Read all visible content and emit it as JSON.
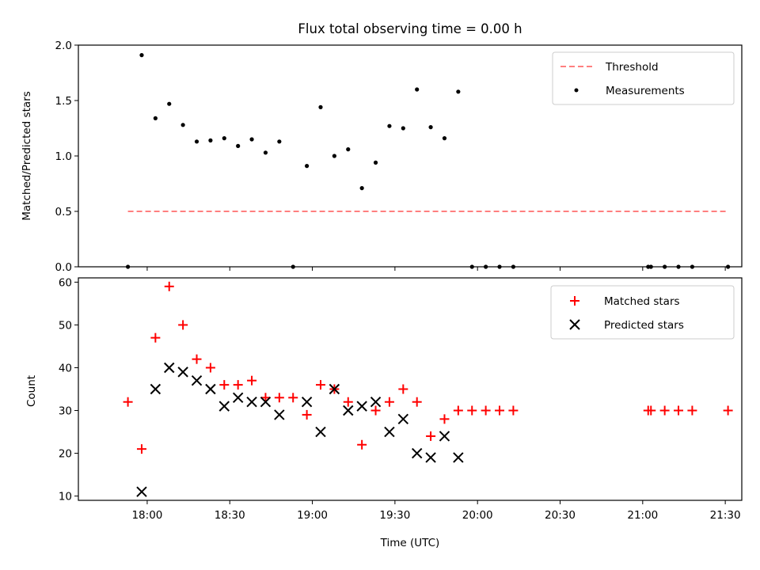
{
  "chart_data": [
    {
      "type": "scatter",
      "title": "Flux total observing time = 0.00 h",
      "xlabel": "",
      "ylabel": "Matched/Predicted stars",
      "ylim": [
        0,
        2.0
      ],
      "yticks": [
        "0.0",
        "0.5",
        "1.0",
        "1.5",
        "2.0"
      ],
      "xlim_minutes_since_midnight_utc": [
        1055,
        1296
      ],
      "legend": {
        "placement": "upper right",
        "entries": [
          "Threshold",
          "Measurements"
        ]
      },
      "series": [
        {
          "name": "Threshold",
          "mark": "dashed-line",
          "color": "#ff7f7f",
          "x": [
            "17:53",
            "21:31"
          ],
          "y": [
            0.5,
            0.5
          ]
        },
        {
          "name": "Measurements",
          "mark": "dot",
          "color": "#000000",
          "x": [
            "17:53",
            "17:58",
            "18:03",
            "18:08",
            "18:13",
            "18:18",
            "18:23",
            "18:28",
            "18:33",
            "18:38",
            "18:43",
            "18:48",
            "18:53",
            "18:58",
            "19:03",
            "19:08",
            "19:13",
            "19:18",
            "19:23",
            "19:28",
            "19:33",
            "19:38",
            "19:43",
            "19:48",
            "19:53",
            "19:58",
            "20:03",
            "20:08",
            "20:13",
            "21:02",
            "21:03",
            "21:08",
            "21:13",
            "21:18",
            "21:31"
          ],
          "y": [
            0.0,
            1.91,
            1.34,
            1.47,
            1.28,
            1.13,
            1.14,
            1.16,
            1.09,
            1.15,
            1.03,
            1.13,
            0.0,
            0.91,
            1.44,
            1.0,
            1.06,
            0.71,
            0.94,
            1.27,
            1.25,
            1.6,
            1.26,
            1.16,
            1.58,
            0.0,
            0.0,
            0.0,
            0.0,
            0.0,
            0.0,
            0.0,
            0.0,
            0.0,
            0.0
          ]
        }
      ]
    },
    {
      "type": "scatter",
      "title": "",
      "xlabel": "Time (UTC)",
      "ylabel": "Count",
      "ylim": [
        9,
        61
      ],
      "yticks": [
        "10",
        "20",
        "30",
        "40",
        "50",
        "60"
      ],
      "xticks": [
        "18:00",
        "18:30",
        "19:00",
        "19:30",
        "20:00",
        "20:30",
        "21:00",
        "21:30"
      ],
      "legend": {
        "placement": "upper right",
        "entries": [
          "Matched stars",
          "Predicted stars"
        ]
      },
      "series": [
        {
          "name": "Matched stars",
          "mark": "plus",
          "color": "#ff0000",
          "x": [
            "17:53",
            "17:58",
            "18:03",
            "18:08",
            "18:13",
            "18:18",
            "18:23",
            "18:28",
            "18:33",
            "18:38",
            "18:43",
            "18:48",
            "18:53",
            "18:58",
            "19:03",
            "19:08",
            "19:13",
            "19:18",
            "19:23",
            "19:28",
            "19:33",
            "19:38",
            "19:43",
            "19:48",
            "19:53",
            "19:58",
            "20:03",
            "20:08",
            "20:13",
            "21:02",
            "21:03",
            "21:08",
            "21:13",
            "21:18",
            "21:31"
          ],
          "y": [
            32,
            21,
            47,
            59,
            50,
            42,
            40,
            36,
            36,
            37,
            33,
            33,
            33,
            29,
            36,
            35,
            32,
            22,
            30,
            32,
            35,
            32,
            24,
            28,
            30,
            30,
            30,
            30,
            30,
            30,
            30,
            30,
            30,
            30,
            30
          ]
        },
        {
          "name": "Predicted stars",
          "mark": "x",
          "color": "#000000",
          "x": [
            "17:58",
            "18:03",
            "18:08",
            "18:13",
            "18:18",
            "18:23",
            "18:28",
            "18:33",
            "18:38",
            "18:43",
            "18:48",
            "18:58",
            "19:03",
            "19:08",
            "19:13",
            "19:18",
            "19:23",
            "19:28",
            "19:33",
            "19:38",
            "19:43",
            "19:48",
            "19:53"
          ],
          "y": [
            11,
            35,
            40,
            39,
            37,
            35,
            31,
            33,
            32,
            32,
            29,
            32,
            25,
            35,
            30,
            31,
            32,
            25,
            28,
            20,
            19,
            24,
            19
          ]
        }
      ]
    }
  ]
}
